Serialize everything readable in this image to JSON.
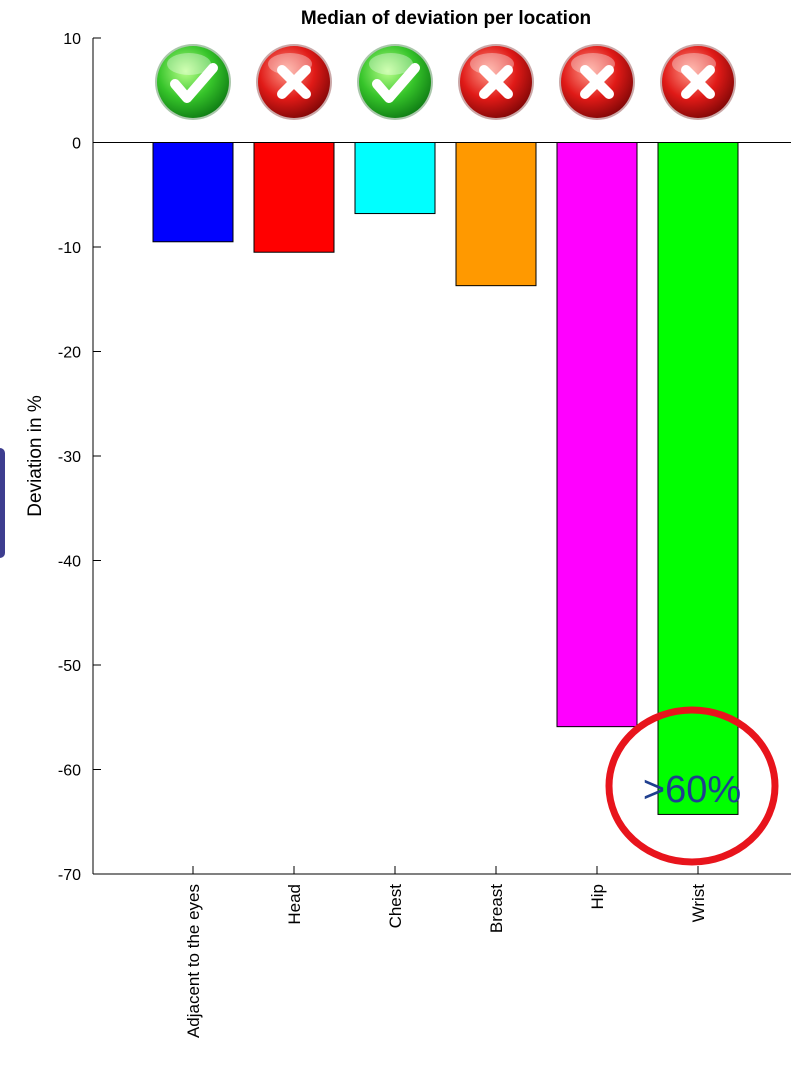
{
  "chart_data": {
    "type": "bar",
    "title": "Median of deviation per location",
    "ylabel": "Deviation in %",
    "xlabel": "",
    "ylim": [
      -70,
      10
    ],
    "yticks": [
      10,
      0,
      -10,
      -20,
      -30,
      -40,
      -50,
      -60,
      -70
    ],
    "categories": [
      "Adjacent to the eyes",
      "Head",
      "Chest",
      "Breast",
      "Hip",
      "Wrist"
    ],
    "values": [
      -9.5,
      -10.5,
      -6.8,
      -13.7,
      -55.9,
      -64.3
    ],
    "colors": [
      "#0000ff",
      "#ff0000",
      "#00ffff",
      "#ff9900",
      "#ff00ff",
      "#00ff00"
    ],
    "status_icons": [
      "check",
      "cross",
      "check",
      "cross",
      "cross",
      "cross"
    ],
    "annotation": {
      "text": ">60%",
      "category": "Wrist",
      "highlight_color": "#e8141c"
    }
  }
}
